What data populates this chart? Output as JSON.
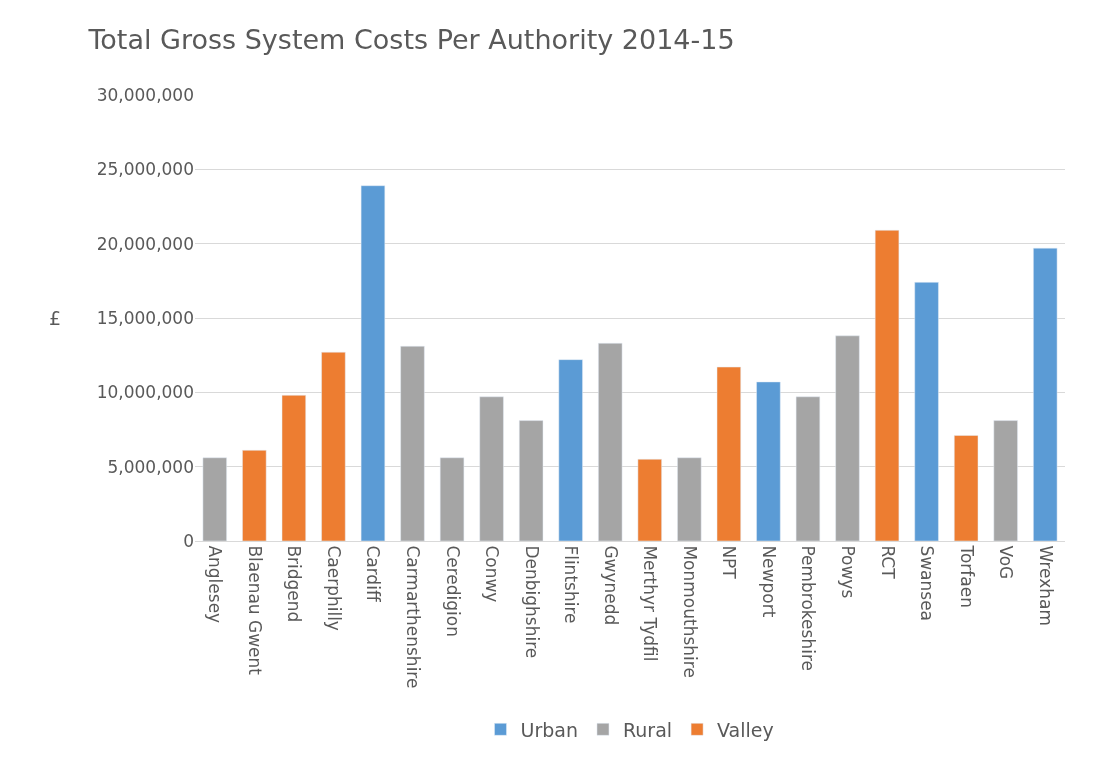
{
  "chart_data": {
    "type": "bar",
    "title": "Total Gross System Costs Per Authority 2014-15",
    "ylabel": "£",
    "categories": [
      "Anglesey",
      "Blaenau Gwent",
      "Bridgend",
      "Caerphilly",
      "Cardiff",
      "Carmarthenshire",
      "Ceredigion",
      "Conwy",
      "Denbighshire",
      "Flintshire",
      "Gwynedd",
      "Merthyr Tydfil",
      "Monmouthshire",
      "NPT",
      "Newport",
      "Pembrokeshire",
      "Powys",
      "RCT",
      "Swansea",
      "Torfaen",
      "VoG",
      "Wrexham"
    ],
    "series": [
      {
        "name": "Urban",
        "color": "#5b9bd5",
        "values": [
          null,
          null,
          null,
          null,
          23900000,
          null,
          null,
          null,
          null,
          12200000,
          null,
          null,
          null,
          null,
          10700000,
          null,
          null,
          null,
          17400000,
          null,
          null,
          19700000
        ]
      },
      {
        "name": "Rural",
        "color": "#a5a5a5",
        "values": [
          5600000,
          null,
          null,
          null,
          null,
          13100000,
          5600000,
          9700000,
          8100000,
          null,
          13300000,
          null,
          5600000,
          null,
          null,
          9700000,
          13800000,
          null,
          null,
          null,
          8100000,
          null
        ]
      },
      {
        "name": "Valley",
        "color": "#ed7d31",
        "values": [
          null,
          6100000,
          9800000,
          12700000,
          null,
          null,
          null,
          null,
          null,
          null,
          null,
          5500000,
          null,
          11700000,
          null,
          null,
          null,
          20900000,
          null,
          7100000,
          null,
          null
        ]
      }
    ],
    "ylim": [
      0,
      30000000
    ],
    "yticks": [
      {
        "value": 0,
        "label": "0"
      },
      {
        "value": 5000000,
        "label": "5,000,000"
      },
      {
        "value": 10000000,
        "label": "10,000,000"
      },
      {
        "value": 15000000,
        "label": "15,000,000"
      },
      {
        "value": 20000000,
        "label": "20,000,000"
      },
      {
        "value": 25000000,
        "label": "25,000,000"
      },
      {
        "value": 30000000,
        "label": "30,000,000"
      }
    ],
    "grid": "y",
    "legend": "bottom"
  }
}
